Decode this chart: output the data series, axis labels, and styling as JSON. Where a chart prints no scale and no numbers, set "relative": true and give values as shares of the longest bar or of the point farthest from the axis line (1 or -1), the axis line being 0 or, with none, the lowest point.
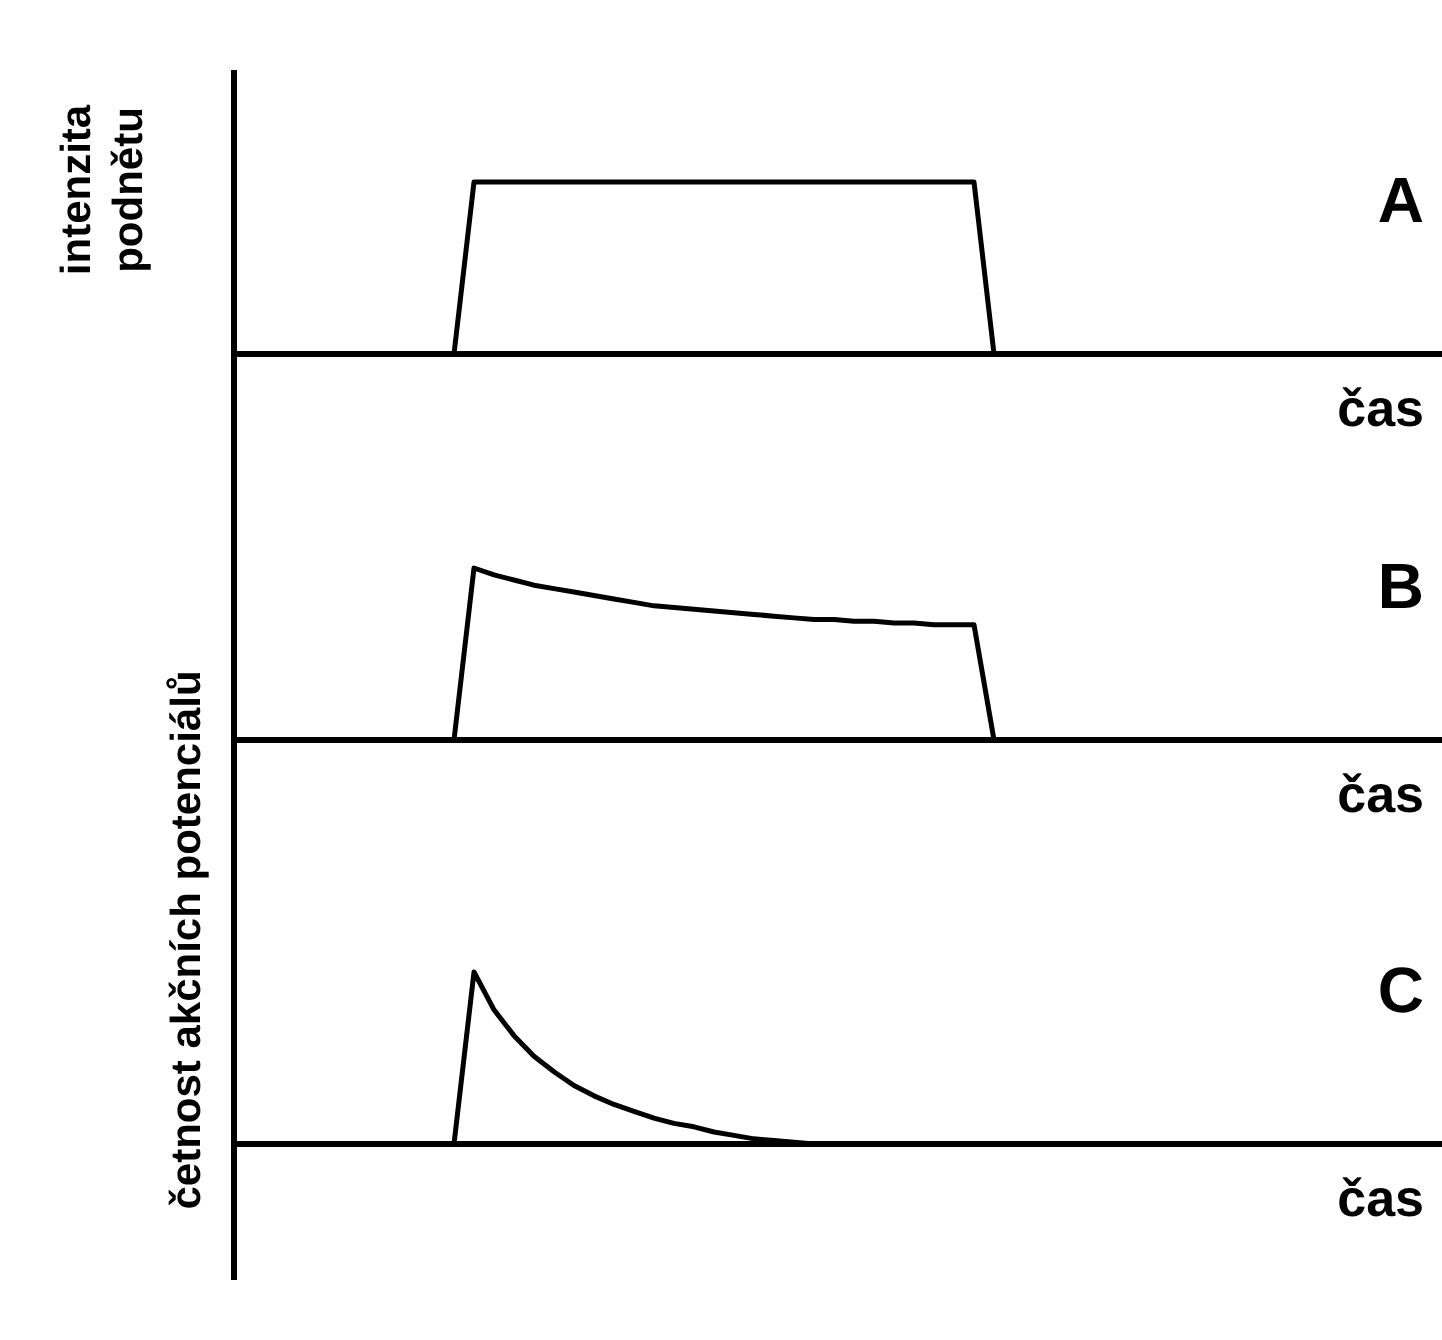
{
  "chart_data": [
    {
      "type": "line",
      "title": "A",
      "xlabel": "čas",
      "ylabel": "intenzita\npodnětu",
      "relative": true,
      "color": "#000000",
      "categories": [
        null,
        null,
        null,
        null,
        null,
        null,
        null,
        null,
        null,
        null,
        null,
        null,
        null,
        null,
        null,
        null,
        null,
        null,
        null,
        null,
        null,
        null,
        null,
        null,
        null,
        null,
        null,
        null,
        null,
        null,
        null,
        null,
        null,
        null,
        null,
        null,
        null,
        null,
        null,
        null,
        null,
        null,
        null,
        null,
        null,
        null,
        null,
        null,
        null,
        null,
        null,
        null,
        null,
        null,
        null,
        null,
        null,
        null,
        null,
        null,
        null
      ],
      "values": [
        0,
        0,
        0,
        0,
        0,
        0,
        0,
        0,
        0,
        0,
        0,
        0,
        1,
        1,
        1,
        1,
        1,
        1,
        1,
        1,
        1,
        1,
        1,
        1,
        1,
        1,
        1,
        1,
        1,
        1,
        1,
        1,
        1,
        1,
        1,
        1,
        1,
        1,
        0,
        0,
        0,
        0,
        0,
        0,
        0,
        0,
        0,
        0,
        0,
        0,
        0,
        0,
        0,
        0,
        0,
        0,
        0,
        0,
        0,
        0,
        0
      ]
    },
    {
      "type": "line",
      "title": "B",
      "xlabel": "čas",
      "ylabel": "četnost akčních potenciálů",
      "relative": true,
      "color": "#000000",
      "categories": [
        null,
        null,
        null,
        null,
        null,
        null,
        null,
        null,
        null,
        null,
        null,
        null,
        null,
        null,
        null,
        null,
        null,
        null,
        null,
        null,
        null,
        null,
        null,
        null,
        null,
        null,
        null,
        null,
        null,
        null,
        null,
        null,
        null,
        null,
        null,
        null,
        null,
        null,
        null,
        null,
        null,
        null,
        null,
        null,
        null,
        null,
        null,
        null,
        null,
        null,
        null,
        null,
        null,
        null,
        null,
        null,
        null,
        null,
        null,
        null,
        null
      ],
      "values": [
        0,
        0,
        0,
        0,
        0,
        0,
        0,
        0,
        0,
        0,
        0,
        0,
        1,
        0.96,
        0.93,
        0.9,
        0.88,
        0.86,
        0.84,
        0.82,
        0.8,
        0.78,
        0.77,
        0.76,
        0.75,
        0.74,
        0.73,
        0.72,
        0.71,
        0.7,
        0.7,
        0.69,
        0.69,
        0.68,
        0.68,
        0.67,
        0.67,
        0.67,
        0,
        0,
        0,
        0,
        0,
        0,
        0,
        0,
        0,
        0,
        0,
        0,
        0,
        0,
        0,
        0,
        0,
        0,
        0,
        0,
        0,
        0,
        0
      ]
    },
    {
      "type": "line",
      "title": "C",
      "xlabel": "čas",
      "relative": true,
      "color": "#000000",
      "categories": [
        null,
        null,
        null,
        null,
        null,
        null,
        null,
        null,
        null,
        null,
        null,
        null,
        null,
        null,
        null,
        null,
        null,
        null,
        null,
        null,
        null,
        null,
        null,
        null,
        null,
        null,
        null,
        null,
        null,
        null,
        null,
        null,
        null,
        null,
        null,
        null,
        null,
        null,
        null,
        null,
        null,
        null,
        null,
        null,
        null,
        null,
        null,
        null,
        null,
        null,
        null,
        null,
        null,
        null,
        null,
        null,
        null,
        null,
        null,
        null,
        null
      ],
      "values": [
        0,
        0,
        0,
        0,
        0,
        0,
        0,
        0,
        0,
        0,
        0,
        0,
        1,
        0.78,
        0.63,
        0.51,
        0.42,
        0.34,
        0.28,
        0.23,
        0.19,
        0.15,
        0.12,
        0.1,
        0.07,
        0.05,
        0.03,
        0.02,
        0.01,
        0,
        0,
        0,
        0,
        0,
        0,
        0,
        0,
        0,
        0,
        0,
        0,
        0,
        0,
        0,
        0,
        0,
        0,
        0,
        0,
        0,
        0,
        0,
        0,
        0,
        0,
        0,
        0,
        0,
        0,
        0,
        0
      ]
    }
  ]
}
